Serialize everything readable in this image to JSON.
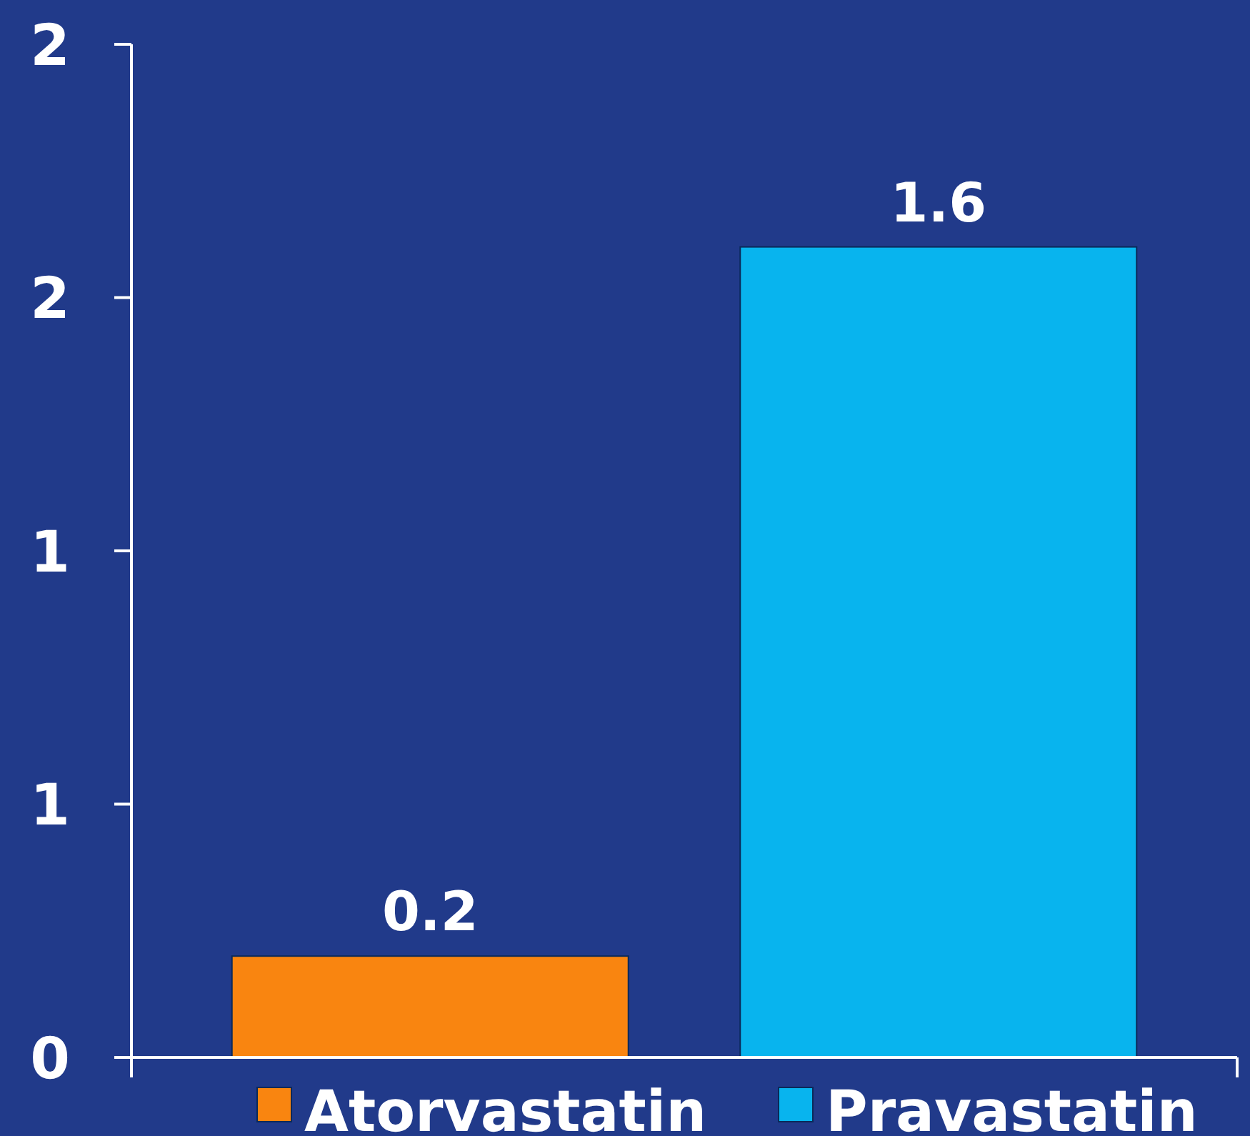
{
  "chart_data": {
    "type": "bar",
    "categories": [
      null
    ],
    "series": [
      {
        "name": "Atorvastatin",
        "color": "#f98510",
        "values": [
          0.2
        ]
      },
      {
        "name": "Pravastatin",
        "color": "#08b4ee",
        "values": [
          1.6
        ]
      }
    ],
    "ylim": [
      0,
      2
    ],
    "yticks": [
      0,
      {
        "value": 0.5,
        "label": "1"
      },
      1,
      {
        "value": 1.5,
        "label": "2"
      },
      2
    ],
    "data_labels": true,
    "legend": "bottom",
    "grid": false
  }
}
